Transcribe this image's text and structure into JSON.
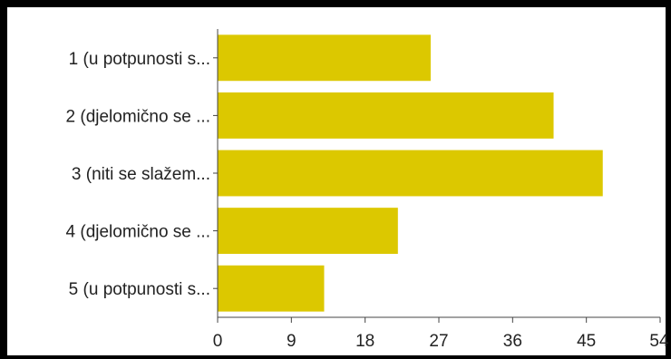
{
  "chart_data": {
    "type": "bar",
    "orientation": "horizontal",
    "categories": [
      "1 (u potpunosti s...",
      "2 (djelomično se ...",
      "3 (niti se slažem...",
      "4 (djelomično se ...",
      "5 (u potpunosti s..."
    ],
    "values": [
      26,
      41,
      47,
      22,
      13
    ],
    "xlim": [
      0,
      54
    ],
    "xticks": [
      "0",
      "9",
      "18",
      "27",
      "36",
      "45",
      "54"
    ],
    "title": "",
    "xlabel": "",
    "ylabel": "",
    "grid": false,
    "legend": "none",
    "bar_color": "#dcc800"
  }
}
